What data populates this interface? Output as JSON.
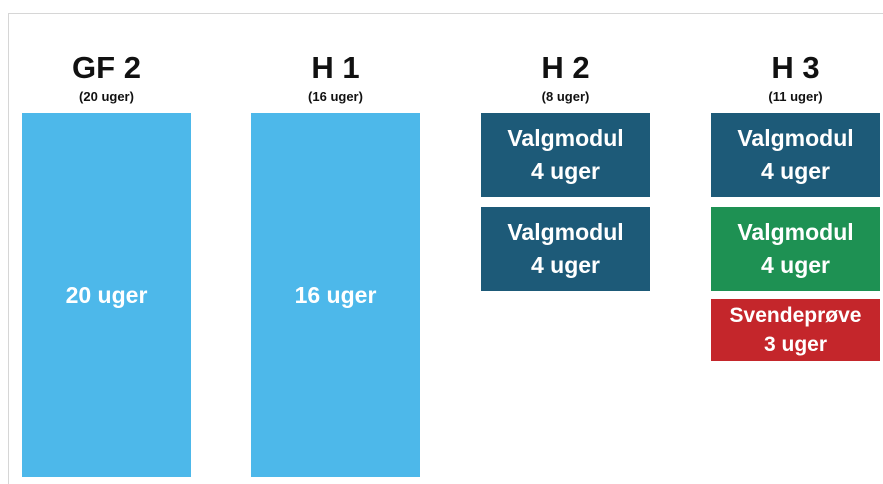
{
  "columns": [
    {
      "title": "GF 2",
      "subtitle": "(20 uger)",
      "blocks": [
        {
          "lines": [
            "20 uger"
          ],
          "color": "#4db8ea"
        }
      ]
    },
    {
      "title": "H 1",
      "subtitle": "(16 uger)",
      "blocks": [
        {
          "lines": [
            "16 uger"
          ],
          "color": "#4db8ea"
        }
      ]
    },
    {
      "title": "H 2",
      "subtitle": "(8 uger)",
      "blocks": [
        {
          "lines": [
            "Valgmodul",
            "4 uger"
          ],
          "color": "#1d5a78"
        },
        {
          "lines": [
            "Valgmodul",
            "4 uger"
          ],
          "color": "#1d5a78"
        }
      ]
    },
    {
      "title": "H 3",
      "subtitle": "(11 uger)",
      "blocks": [
        {
          "lines": [
            "Valgmodul",
            "4 uger"
          ],
          "color": "#1d5a78"
        },
        {
          "lines": [
            "Valgmodul",
            "4 uger"
          ],
          "color": "#1e9153"
        },
        {
          "lines": [
            "Svendeprøve",
            "3 uger"
          ],
          "color": "#c4262b"
        }
      ]
    }
  ]
}
